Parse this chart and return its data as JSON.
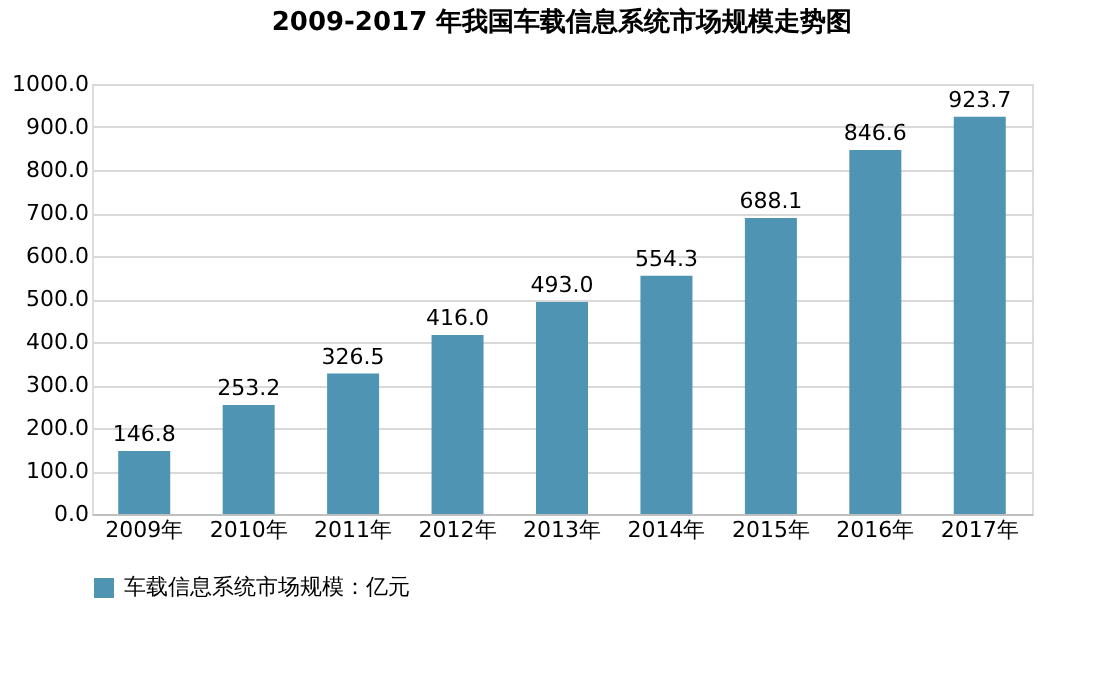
{
  "chart_data": {
    "type": "bar",
    "title": "2009-2017 年我国车载信息系统市场规模走势图",
    "categories": [
      "2009年",
      "2010年",
      "2011年",
      "2012年",
      "2013年",
      "2014年",
      "2015年",
      "2016年",
      "2017年"
    ],
    "series": [
      {
        "name": "车载信息系统市场规模：亿元",
        "color": "#4f94b3",
        "values": [
          146.8,
          253.2,
          326.5,
          416.0,
          493.0,
          554.3,
          688.1,
          846.6,
          923.7
        ],
        "value_labels": [
          "146.8",
          "253.2",
          "326.5",
          "416.0",
          "493.0",
          "554.3",
          "688.1",
          "846.6",
          "923.7"
        ]
      }
    ],
    "ylim": [
      0,
      1000
    ],
    "yticks": [
      {
        "value": 0,
        "label": "0.0"
      },
      {
        "value": 100,
        "label": "100.0"
      },
      {
        "value": 200,
        "label": "200.0"
      },
      {
        "value": 300,
        "label": "300.0"
      },
      {
        "value": 400,
        "label": "400.0"
      },
      {
        "value": 500,
        "label": "500.0"
      },
      {
        "value": 600,
        "label": "600.0"
      },
      {
        "value": 700,
        "label": "700.0"
      },
      {
        "value": 800,
        "label": "800.0"
      },
      {
        "value": 900,
        "label": "900.0"
      },
      {
        "value": 1000,
        "label": "1000.0"
      }
    ],
    "grid": "y",
    "legend": "bottom"
  }
}
